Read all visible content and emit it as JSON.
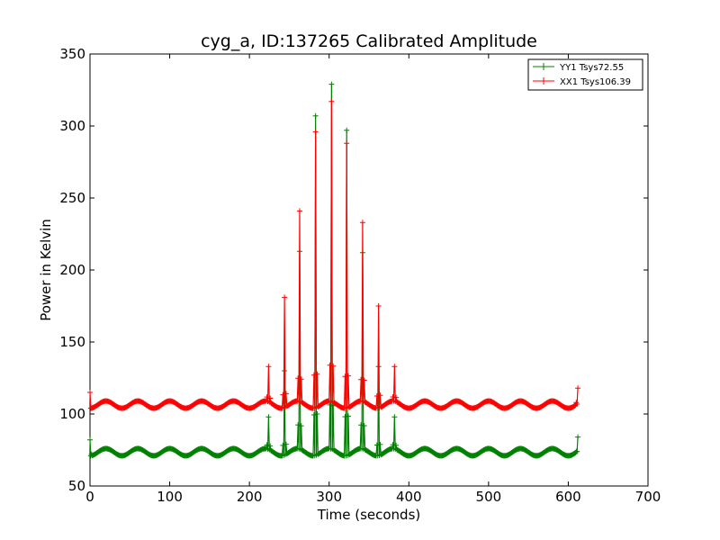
{
  "chart_data": {
    "type": "line",
    "title": "cyg_a, ID:137265 Calibrated Amplitude",
    "xlabel": "Time (seconds)",
    "ylabel": "Power in Kelvin",
    "xlim": [
      0,
      700
    ],
    "ylim": [
      50,
      350
    ],
    "x_ticks": [
      "0",
      "100",
      "200",
      "300",
      "400",
      "500",
      "600",
      "700"
    ],
    "y_ticks": [
      "50",
      "100",
      "150",
      "200",
      "250",
      "300",
      "350"
    ],
    "grid": false,
    "legend_position": "top-right",
    "series": [
      {
        "name": "YY1 Tsys72.55",
        "color": "#008000",
        "marker": "plus",
        "baseline": {
          "mean": 73.5,
          "amplitude": 2.5,
          "period_seconds": 40
        },
        "x_range": [
          0,
          612
        ],
        "points": [
          {
            "x": 0,
            "y": 82
          },
          {
            "x": 2,
            "y": 72
          },
          {
            "x": 224,
            "y": 98
          },
          {
            "x": 244,
            "y": 130
          },
          {
            "x": 263,
            "y": 213
          },
          {
            "x": 283,
            "y": 307
          },
          {
            "x": 303,
            "y": 329
          },
          {
            "x": 322,
            "y": 297
          },
          {
            "x": 342,
            "y": 212
          },
          {
            "x": 362,
            "y": 133
          },
          {
            "x": 382,
            "y": 98
          },
          {
            "x": 610,
            "y": 74
          },
          {
            "x": 612,
            "y": 84
          }
        ]
      },
      {
        "name": "XX1 Tsys106.39",
        "color": "#ff0000",
        "marker": "plus",
        "baseline": {
          "mean": 106.5,
          "amplitude": 2.5,
          "period_seconds": 40
        },
        "x_range": [
          0,
          612
        ],
        "points": [
          {
            "x": 0,
            "y": 115
          },
          {
            "x": 2,
            "y": 104
          },
          {
            "x": 224,
            "y": 133
          },
          {
            "x": 244,
            "y": 181
          },
          {
            "x": 263,
            "y": 241
          },
          {
            "x": 283,
            "y": 296
          },
          {
            "x": 303,
            "y": 317
          },
          {
            "x": 322,
            "y": 288
          },
          {
            "x": 342,
            "y": 233
          },
          {
            "x": 362,
            "y": 175
          },
          {
            "x": 382,
            "y": 133
          },
          {
            "x": 610,
            "y": 108
          },
          {
            "x": 612,
            "y": 118
          }
        ]
      }
    ]
  }
}
